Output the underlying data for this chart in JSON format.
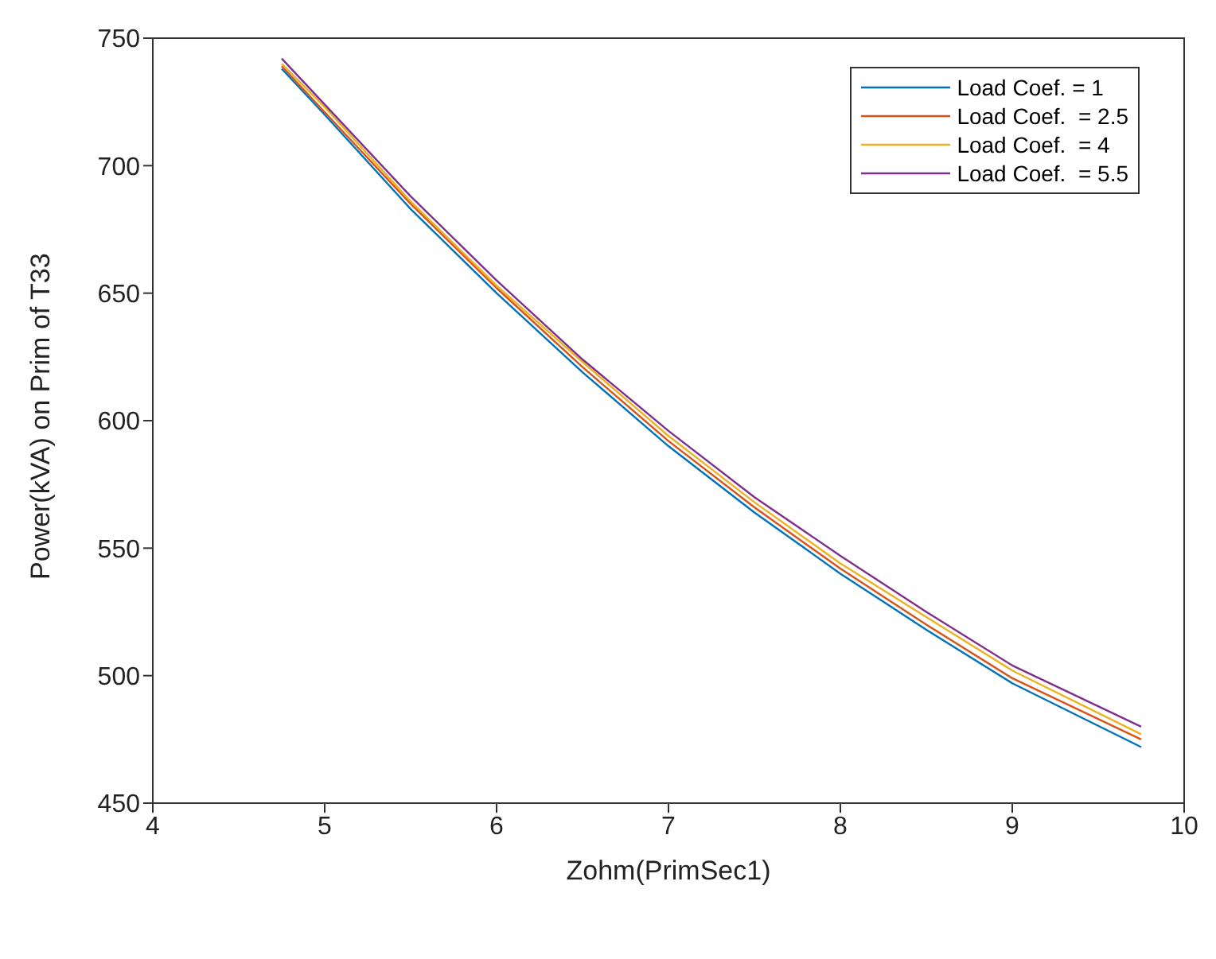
{
  "chart_data": {
    "type": "line",
    "xlabel": "Zohm(PrimSec1)",
    "ylabel": "Power(kVA) on Prim of T33",
    "x": [
      4.75,
      5,
      5.5,
      6,
      6.5,
      7,
      7.5,
      8,
      8.5,
      9,
      9.75
    ],
    "series": [
      {
        "name": "Load Coef. = 1",
        "color": "#0072bd",
        "values": [
          738,
          720,
          683,
          650,
          619,
          590,
          564,
          540,
          518,
          497,
          472
        ]
      },
      {
        "name": "Load Coef.  = 2.5",
        "color": "#d95319",
        "values": [
          739,
          721,
          685,
          652,
          621,
          592,
          566,
          542,
          520,
          499,
          475
        ]
      },
      {
        "name": "Load Coef.  = 4",
        "color": "#edb120",
        "values": [
          740,
          723,
          686,
          653,
          623,
          594,
          568,
          544,
          523,
          502,
          477
        ]
      },
      {
        "name": "Load Coef.  = 5.5",
        "color": "#7e2f8e",
        "values": [
          742,
          724,
          688,
          655,
          624,
          596,
          570,
          547,
          525,
          504,
          480
        ]
      }
    ],
    "xlim": [
      4,
      10
    ],
    "xticks": [
      4,
      5,
      6,
      7,
      8,
      9,
      10
    ],
    "ylim": [
      450,
      750
    ],
    "yticks": [
      450,
      500,
      550,
      600,
      650,
      700,
      750
    ],
    "grid": false,
    "legend": "top right",
    "marker": "none",
    "line_style": "solid"
  }
}
